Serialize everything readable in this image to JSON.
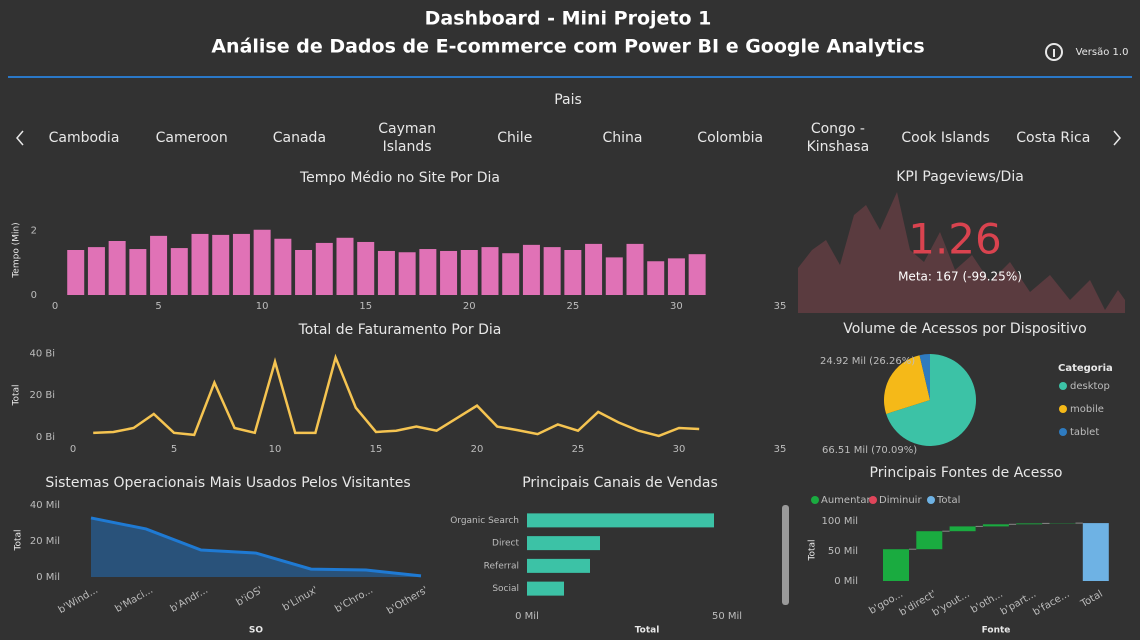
{
  "header": {
    "title": "Dashboard - Mini Projeto 1",
    "subtitle": "Análise de Dados de E-commerce com Power BI e Google Analytics",
    "version": "Versão 1.0"
  },
  "slicer": {
    "title": "Pais",
    "items": [
      "Cambodia",
      "Cameroon",
      "Canada",
      "Cayman Islands",
      "Chile",
      "China",
      "Colombia",
      "Congo - Kinshasa",
      "Cook Islands",
      "Costa Rica"
    ]
  },
  "kpi": {
    "title": "KPI Pageviews/Dia",
    "value": 1.26,
    "goal": "Meta: 167 (-99.25%)"
  },
  "chart_data": [
    {
      "type": "bar",
      "title": "Tempo Médio no Site Por Dia",
      "ylabel": "Tempo (Min)",
      "color": "#e072b6",
      "x": [
        1,
        2,
        3,
        4,
        5,
        6,
        7,
        8,
        9,
        10,
        11,
        12,
        13,
        14,
        15,
        16,
        17,
        18,
        19,
        20,
        21,
        22,
        23,
        24,
        25,
        26,
        27,
        28,
        29,
        30,
        31
      ],
      "values": [
        1.4,
        1.49,
        1.68,
        1.43,
        1.84,
        1.46,
        1.9,
        1.87,
        1.9,
        2.03,
        1.75,
        1.4,
        1.62,
        1.78,
        1.65,
        1.37,
        1.33,
        1.43,
        1.37,
        1.4,
        1.49,
        1.3,
        1.56,
        1.49,
        1.4,
        1.59,
        1.17,
        1.59,
        1.05,
        1.14,
        1.27
      ],
      "xlim": [
        0,
        35
      ],
      "xticks": [
        0,
        5,
        10,
        15,
        20,
        25,
        30,
        35
      ],
      "ylim": [
        0,
        2.8
      ],
      "yticks": [
        0,
        2
      ]
    },
    {
      "type": "line",
      "title": "Total de Faturamento Por Dia",
      "ylabel": "Total",
      "color": "#f5c451",
      "x": [
        1,
        2,
        3,
        4,
        5,
        6,
        7,
        8,
        9,
        10,
        11,
        12,
        13,
        14,
        15,
        16,
        17,
        18,
        19,
        20,
        21,
        22,
        23,
        24,
        25,
        26,
        27,
        28,
        29,
        30,
        31
      ],
      "values": [
        2,
        2.4,
        4.3,
        11,
        2,
        1,
        26,
        4.3,
        2,
        36,
        2,
        2,
        38,
        14,
        2.4,
        3,
        5,
        3,
        9,
        15,
        5,
        3.3,
        1.4,
        6,
        3,
        12,
        7,
        3,
        0.5,
        4.3,
        3.8
      ],
      "xlim": [
        0,
        35
      ],
      "xticks": [
        0,
        5,
        10,
        15,
        20,
        25,
        30,
        35
      ],
      "ylim": [
        0,
        44
      ],
      "yticks": [
        {
          "value": 0,
          "label": "0 Bi"
        },
        {
          "value": 20,
          "label": "20 Bi"
        },
        {
          "value": 40,
          "label": "40 Bi"
        }
      ]
    },
    {
      "type": "area",
      "title": "Sistemas Operacionais Mais Usados Pelos Visitantes",
      "xlabel": "SO",
      "ylabel": "Total",
      "color": "#1f7ad3",
      "categories": [
        "b'Wind...",
        "b'Maci...",
        "b'Andr...",
        "b'iOS'",
        "b'Linux'",
        "b'Chro...",
        "b'Others'"
      ],
      "values": [
        32.8,
        26.7,
        15,
        13.3,
        4.4,
        3.9,
        0.6
      ],
      "ylim": [
        0,
        40
      ],
      "yticks": [
        {
          "value": 0,
          "label": "0 Mil"
        },
        {
          "value": 20,
          "label": "20 Mil"
        },
        {
          "value": 40,
          "label": "40 Mil"
        }
      ]
    },
    {
      "type": "barh",
      "title": "Principais Canais de Vendas",
      "xlabel": "Total",
      "color": "#3cc2a6",
      "categories": [
        "Organic Search",
        "Direct",
        "Referral",
        "Social"
      ],
      "values": [
        46.75,
        18.25,
        15.75,
        9.25
      ],
      "xlim": [
        0,
        50
      ],
      "xticks": [
        {
          "value": 0,
          "label": "0 Mil"
        },
        {
          "value": 50,
          "label": "50 Mil"
        }
      ]
    },
    {
      "type": "pie",
      "title": "Volume de Acessos por Dispositivo",
      "legend_title": "Categoria",
      "categories": [
        "desktop",
        "mobile",
        "tablet"
      ],
      "values": [
        66.51,
        24.92,
        3.46
      ],
      "value_labels": [
        "66.51 Mil (70.09%)",
        "24.92 Mil (26.26%)",
        null
      ],
      "colors": [
        "#3cc2a6",
        "#f5b918",
        "#2e7bc0"
      ]
    },
    {
      "type": "waterfall",
      "title": "Principais Fontes de Acesso",
      "xlabel": "Fonte",
      "ylabel": "Total",
      "categories": [
        "b'goo...",
        "b'direct'",
        "b'yout...",
        "b'oth...",
        "b'part...",
        "b'face...",
        "Total"
      ],
      "series": [
        {
          "name": "Aumentar",
          "color": "#1aab40",
          "values": [
            53,
            30,
            8,
            3.5,
            1.5,
            0.5,
            null
          ]
        },
        {
          "name": "Diminuir",
          "color": "#e0455a",
          "values": [
            null,
            null,
            null,
            null,
            null,
            null,
            null
          ]
        },
        {
          "name": "Total",
          "color": "#6eb2e4",
          "values": [
            null,
            null,
            null,
            null,
            null,
            null,
            96.5
          ]
        }
      ],
      "ylim": [
        0,
        100
      ],
      "yticks": [
        {
          "value": 0,
          "label": "0 Mil"
        },
        {
          "value": 50,
          "label": "50 Mil"
        },
        {
          "value": 100,
          "label": "100 Mil"
        }
      ]
    }
  ]
}
